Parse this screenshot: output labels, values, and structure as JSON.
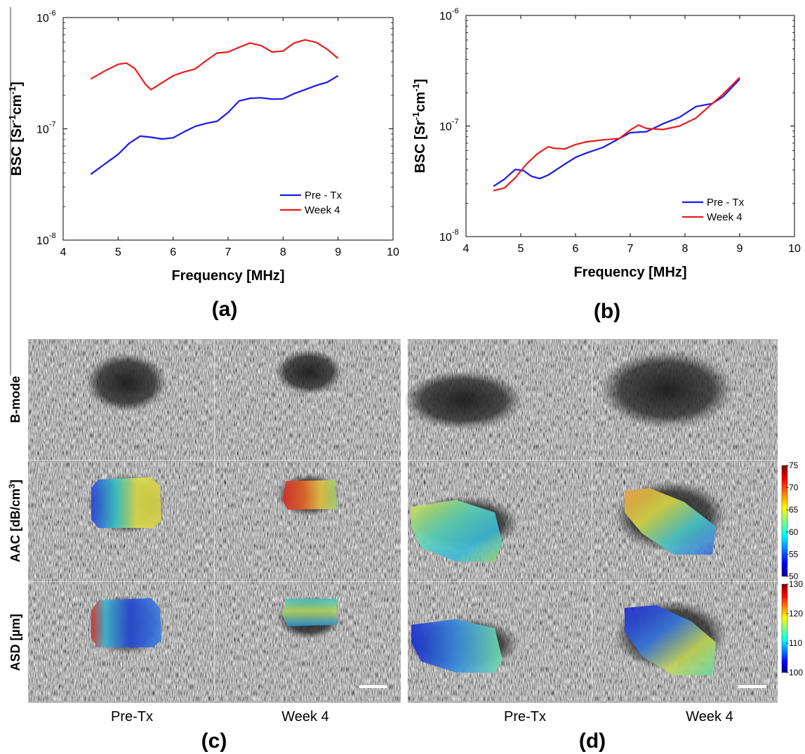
{
  "colors": {
    "pre_tx": "#1a1aee",
    "week4": "#ee1c1c",
    "axis": "#000000",
    "ultrasound_bg": "#6a6a6a"
  },
  "chart_data": [
    {
      "type": "line",
      "panel_label": "(a)",
      "xlabel": "Frequency [MHz]",
      "ylabel_main": "BSC [Sr",
      "ylabel_sup1": "-1",
      "ylabel_mid": "cm",
      "ylabel_sup2": "-1",
      "ylabel_end": "]",
      "xlim": [
        4,
        10
      ],
      "ylim": [
        1e-08,
        1e-06
      ],
      "yscale": "log",
      "xticks": [
        "4",
        "5",
        "6",
        "7",
        "8",
        "9",
        "10"
      ],
      "yticks": [
        {
          "base": "10",
          "exp": "-8"
        },
        {
          "base": "10",
          "exp": "-7"
        },
        {
          "base": "10",
          "exp": "-6"
        }
      ],
      "legend_position": "bottom-right",
      "series": [
        {
          "name": "Pre - Tx",
          "color_key": "pre_tx",
          "x": [
            4.5,
            4.75,
            5.0,
            5.2,
            5.4,
            5.6,
            5.8,
            6.0,
            6.2,
            6.4,
            6.6,
            6.8,
            7.0,
            7.2,
            7.4,
            7.6,
            7.8,
            8.0,
            8.2,
            8.4,
            8.6,
            8.8,
            9.0
          ],
          "y": [
            3.9e-08,
            4.8e-08,
            5.9e-08,
            7.4e-08,
            8.6e-08,
            8.4e-08,
            8.1e-08,
            8.3e-08,
            9.4e-08,
            1.05e-07,
            1.12e-07,
            1.17e-07,
            1.4e-07,
            1.78e-07,
            1.88e-07,
            1.9e-07,
            1.85e-07,
            1.86e-07,
            2.07e-07,
            2.25e-07,
            2.45e-07,
            2.62e-07,
            3e-07
          ]
        },
        {
          "name": "Week 4",
          "color_key": "week4",
          "x": [
            4.5,
            4.75,
            5.0,
            5.15,
            5.3,
            5.5,
            5.6,
            5.8,
            6.0,
            6.2,
            6.4,
            6.6,
            6.8,
            7.0,
            7.2,
            7.4,
            7.6,
            7.8,
            8.0,
            8.2,
            8.4,
            8.6,
            8.8,
            9.0
          ],
          "y": [
            2.8e-07,
            3.3e-07,
            3.8e-07,
            3.9e-07,
            3.5e-07,
            2.5e-07,
            2.25e-07,
            2.6e-07,
            3e-07,
            3.25e-07,
            3.45e-07,
            4.1e-07,
            4.8e-07,
            4.9e-07,
            5.4e-07,
            5.9e-07,
            5.6e-07,
            4.9e-07,
            5e-07,
            5.9e-07,
            6.3e-07,
            6e-07,
            5.2e-07,
            4.3e-07
          ]
        }
      ]
    },
    {
      "type": "line",
      "panel_label": "(b)",
      "xlabel": "Frequency [MHz]",
      "ylabel_main": "BSC [Sr",
      "ylabel_sup1": "-1",
      "ylabel_mid": "cm",
      "ylabel_sup2": "-1",
      "ylabel_end": "]",
      "xlim": [
        4,
        10
      ],
      "ylim": [
        1e-08,
        1e-06
      ],
      "yscale": "log",
      "xticks": [
        "4",
        "5",
        "6",
        "7",
        "8",
        "9",
        "10"
      ],
      "yticks": [
        {
          "base": "10",
          "exp": "-8"
        },
        {
          "base": "10",
          "exp": "-7"
        },
        {
          "base": "10",
          "exp": "-6"
        }
      ],
      "legend_position": "bottom-right",
      "series": [
        {
          "name": "Pre - Tx",
          "color_key": "pre_tx",
          "x": [
            4.5,
            4.7,
            4.9,
            5.05,
            5.2,
            5.35,
            5.5,
            5.8,
            6.0,
            6.2,
            6.5,
            6.8,
            7.0,
            7.3,
            7.6,
            7.9,
            8.2,
            8.5,
            8.7,
            9.0
          ],
          "y": [
            2.85e-08,
            3.3e-08,
            4.05e-08,
            3.95e-08,
            3.5e-08,
            3.35e-08,
            3.6e-08,
            4.5e-08,
            5.2e-08,
            5.7e-08,
            6.4e-08,
            7.7e-08,
            8.7e-08,
            8.9e-08,
            1.05e-07,
            1.2e-07,
            1.5e-07,
            1.6e-07,
            1.85e-07,
            2.65e-07
          ]
        },
        {
          "name": "Week 4",
          "color_key": "week4",
          "x": [
            4.5,
            4.7,
            4.9,
            5.1,
            5.3,
            5.5,
            5.6,
            5.8,
            6.0,
            6.2,
            6.5,
            6.8,
            7.0,
            7.15,
            7.3,
            7.6,
            7.9,
            8.2,
            8.5,
            8.7,
            9.0
          ],
          "y": [
            2.6e-08,
            2.75e-08,
            3.4e-08,
            4.5e-08,
            5.6e-08,
            6.5e-08,
            6.3e-08,
            6.2e-08,
            6.8e-08,
            7.2e-08,
            7.5e-08,
            7.7e-08,
            9.2e-08,
            1.02e-07,
            9.5e-08,
            9.3e-08,
            1e-07,
            1.18e-07,
            1.6e-07,
            1.95e-07,
            2.75e-07
          ]
        }
      ]
    }
  ],
  "image_panels": {
    "c_label": "(c)",
    "d_label": "(d)",
    "row_labels": {
      "bmode": "B-mode",
      "aac_main": "AAC [dB/cm",
      "aac_sup": "3",
      "aac_end": "]",
      "asd": "ASD [µm]"
    },
    "col_labels": [
      "Pre-Tx",
      "Week 4",
      "Pre-Tx",
      "Week 4"
    ],
    "colorbar_aac": {
      "ticks": [
        "75",
        "70",
        "65",
        "60",
        "55",
        "50"
      ],
      "min": 50,
      "max": 75
    },
    "colorbar_asd": {
      "ticks": [
        "130",
        "120",
        "110",
        "100"
      ],
      "min": 100,
      "max": 130
    }
  }
}
